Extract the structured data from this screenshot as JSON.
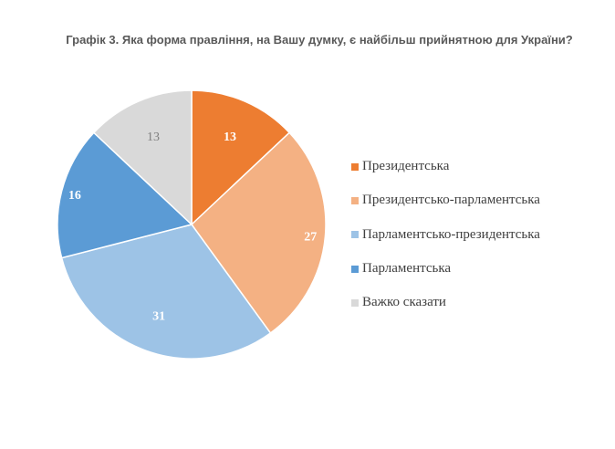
{
  "chart_data": {
    "type": "pie",
    "title": "Графік 3. Яка форма правління, на Вашу думку, є найбільш прийнятною для України?",
    "categories": [
      "Президентська",
      "Президентсько-парламентська",
      "Парламентсько-президентська",
      "Парламентська",
      "Важко сказати"
    ],
    "values": [
      13,
      27,
      31,
      16,
      13
    ],
    "labels": [
      "13",
      "27",
      "31",
      "16",
      "13"
    ],
    "colors": [
      "#ED7D31",
      "#F4B183",
      "#9DC3E6",
      "#5B9BD5",
      "#D9D9D9"
    ],
    "label_colors": [
      "#FFFFFF",
      "#FFFFFF",
      "#FFFFFF",
      "#FFFFFF",
      "#7F7F7F"
    ],
    "legend_position": "right"
  }
}
